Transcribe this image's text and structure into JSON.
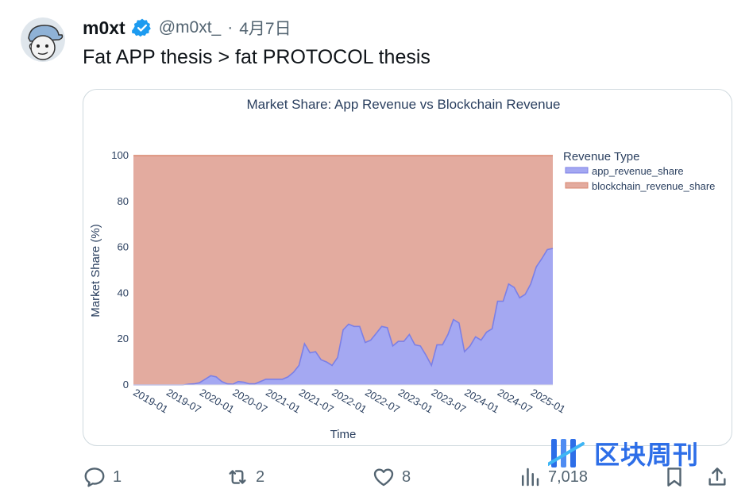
{
  "tweet": {
    "display_name": "m0xt",
    "handle": "@m0xt_",
    "separator": "·",
    "date": "4月7日",
    "text": "Fat APP thesis > fat PROTOCOL thesis",
    "avatar_icon": "cartoon-avatar-icon",
    "verified_icon": "verified-badge-icon"
  },
  "actions": {
    "replies": "1",
    "retweets": "2",
    "likes": "8",
    "views": "7,018"
  },
  "watermark": {
    "text": "区块周刊",
    "logo_icon": "blockchain-weekly-logo-icon"
  },
  "colors": {
    "app": "#a4a8f2",
    "app_line": "#7b7fe6",
    "blockchain": "#e3ab9f",
    "blockchain_line": "#d9876f",
    "brand_blue": "#2d6ee8"
  },
  "chart_data": {
    "type": "area",
    "stacked": true,
    "title": "Market Share: App Revenue vs Blockchain Revenue",
    "xlabel": "Time",
    "ylabel": "Market Share (%)",
    "ylim": [
      0,
      100
    ],
    "yticks": [
      0,
      20,
      40,
      60,
      80,
      100
    ],
    "x_ticks": [
      "2019-01",
      "2019-07",
      "2020-01",
      "2020-07",
      "2021-01",
      "2021-07",
      "2022-01",
      "2022-07",
      "2023-01",
      "2023-07",
      "2024-01",
      "2024-07",
      "2025-01"
    ],
    "legend_title": "Revenue Type",
    "legend_position": "top-right",
    "x": [
      "2018-10",
      "2018-11",
      "2018-12",
      "2019-01",
      "2019-02",
      "2019-03",
      "2019-04",
      "2019-05",
      "2019-06",
      "2019-07",
      "2019-08",
      "2019-09",
      "2019-10",
      "2019-11",
      "2019-12",
      "2020-01",
      "2020-02",
      "2020-03",
      "2020-04",
      "2020-05",
      "2020-06",
      "2020-07",
      "2020-08",
      "2020-09",
      "2020-10",
      "2020-11",
      "2020-12",
      "2021-01",
      "2021-02",
      "2021-03",
      "2021-04",
      "2021-05",
      "2021-06",
      "2021-07",
      "2021-08",
      "2021-09",
      "2021-10",
      "2021-11",
      "2021-12",
      "2022-01",
      "2022-02",
      "2022-03",
      "2022-04",
      "2022-05",
      "2022-06",
      "2022-07",
      "2022-08",
      "2022-09",
      "2022-10",
      "2022-11",
      "2022-12",
      "2023-01",
      "2023-02",
      "2023-03",
      "2023-04",
      "2023-05",
      "2023-06",
      "2023-07",
      "2023-08",
      "2023-09",
      "2023-10",
      "2023-11",
      "2023-12",
      "2024-01",
      "2024-02",
      "2024-03",
      "2024-04",
      "2024-05",
      "2024-06",
      "2024-07",
      "2024-08",
      "2024-09",
      "2024-10",
      "2024-11",
      "2024-12",
      "2025-01",
      "2025-02"
    ],
    "series": [
      {
        "name": "app_revenue_share",
        "values": [
          0,
          0,
          0,
          0,
          0,
          0,
          0,
          0,
          0,
          0,
          0.3,
          0.5,
          1,
          2.5,
          4,
          3.5,
          1.5,
          0.5,
          0.3,
          1.5,
          1.2,
          0.5,
          0.5,
          1.5,
          2.5,
          2.5,
          2.5,
          2.5,
          3.5,
          5.5,
          8.5,
          18,
          14,
          14.5,
          11,
          10,
          8.5,
          12,
          24,
          26.5,
          25.5,
          25.5,
          18.5,
          19.5,
          22.5,
          25.5,
          25,
          17,
          19,
          19,
          22,
          17.5,
          17,
          13,
          8.5,
          17.5,
          17.5,
          22,
          28.5,
          27,
          14.5,
          17,
          21,
          19.5,
          23,
          24.5,
          36.5,
          36.5,
          44,
          42.5,
          38,
          39.5,
          44,
          51.5,
          55,
          59,
          59.5
        ]
      },
      {
        "name": "blockchain_revenue_share",
        "values": "remainder_to_100"
      }
    ]
  }
}
